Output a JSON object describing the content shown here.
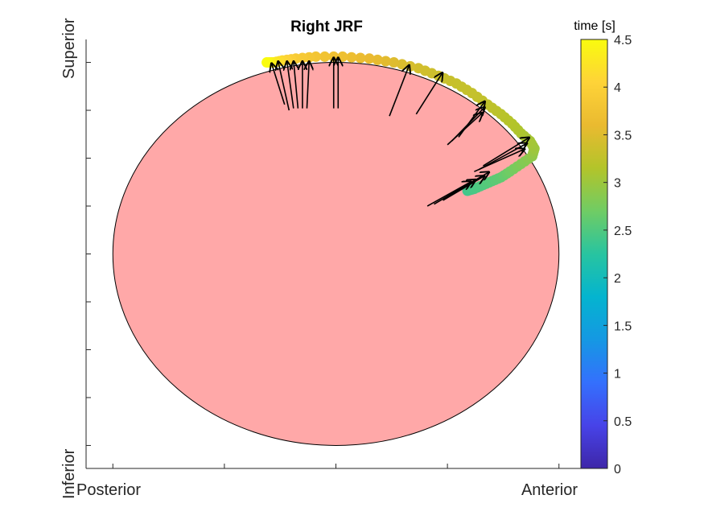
{
  "chart_data": {
    "type": "scatter",
    "title": "Right JRF",
    "xlabel_left": "Posterior",
    "xlabel_right": "Anterior",
    "ylabel_top": "Superior",
    "ylabel_bottom": "Inferior",
    "xlim": [
      -1.12,
      1.12
    ],
    "ylim": [
      -1.12,
      1.12
    ],
    "xticks": [
      -1,
      -0.5,
      0,
      0.5,
      1
    ],
    "yticks": [
      -1,
      -0.75,
      -0.5,
      -0.25,
      0,
      0.25,
      0.5,
      0.75,
      1
    ],
    "grid": false,
    "circle": {
      "center": [
        0,
        0
      ],
      "radius": 1,
      "fill": "#ffa8a8"
    },
    "colorbar": {
      "label": "time [s]",
      "range": [
        0,
        4.5
      ],
      "ticks": [
        0,
        0.5,
        1,
        1.5,
        2,
        2.5,
        3,
        3.5,
        4,
        4.5
      ],
      "tick_labels": [
        "0",
        "0.5",
        "1",
        "1.5",
        "2",
        "2.5",
        "3",
        "3.5",
        "4",
        "4.5"
      ],
      "colormap": "parula"
    },
    "points": [
      {
        "x": 0.59,
        "y": 0.33,
        "t": 2.4
      },
      {
        "x": 0.62,
        "y": 0.34,
        "t": 2.45
      },
      {
        "x": 0.66,
        "y": 0.36,
        "t": 2.5
      },
      {
        "x": 0.7,
        "y": 0.38,
        "t": 2.55
      },
      {
        "x": 0.74,
        "y": 0.4,
        "t": 2.6
      },
      {
        "x": 0.78,
        "y": 0.43,
        "t": 2.7
      },
      {
        "x": 0.83,
        "y": 0.47,
        "t": 2.8
      },
      {
        "x": 0.88,
        "y": 0.51,
        "t": 2.9
      },
      {
        "x": 0.89,
        "y": 0.55,
        "t": 3.0
      },
      {
        "x": 0.87,
        "y": 0.59,
        "t": 3.05
      },
      {
        "x": 0.83,
        "y": 0.63,
        "t": 3.1
      },
      {
        "x": 0.79,
        "y": 0.68,
        "t": 3.15
      },
      {
        "x": 0.74,
        "y": 0.73,
        "t": 3.2
      },
      {
        "x": 0.68,
        "y": 0.78,
        "t": 3.25
      },
      {
        "x": 0.61,
        "y": 0.84,
        "t": 3.3
      },
      {
        "x": 0.54,
        "y": 0.89,
        "t": 3.3
      },
      {
        "x": 0.46,
        "y": 0.93,
        "t": 3.35
      },
      {
        "x": 0.37,
        "y": 0.97,
        "t": 3.4
      },
      {
        "x": 0.26,
        "y": 1.0,
        "t": 3.5
      },
      {
        "x": 0.15,
        "y": 1.02,
        "t": 3.6
      },
      {
        "x": 0.03,
        "y": 1.03,
        "t": 3.7
      },
      {
        "x": -0.09,
        "y": 1.03,
        "t": 3.8
      },
      {
        "x": -0.18,
        "y": 1.02,
        "t": 3.9
      },
      {
        "x": -0.24,
        "y": 1.01,
        "t": 4.1
      },
      {
        "x": -0.28,
        "y": 1.0,
        "t": 4.3
      },
      {
        "x": -0.31,
        "y": 1.0,
        "t": 4.5
      }
    ],
    "arrows": [
      {
        "x0": 0.41,
        "y0": 0.25,
        "x1": 0.61,
        "y1": 0.38
      },
      {
        "x0": 0.44,
        "y0": 0.26,
        "x1": 0.63,
        "y1": 0.39
      },
      {
        "x0": 0.48,
        "y0": 0.28,
        "x1": 0.67,
        "y1": 0.41
      },
      {
        "x0": 0.5,
        "y0": 0.3,
        "x1": 0.69,
        "y1": 0.43
      },
      {
        "x0": 0.62,
        "y0": 0.43,
        "x1": 0.85,
        "y1": 0.55
      },
      {
        "x0": 0.64,
        "y0": 0.44,
        "x1": 0.86,
        "y1": 0.58
      },
      {
        "x0": 0.66,
        "y0": 0.46,
        "x1": 0.87,
        "y1": 0.61
      },
      {
        "x0": 0.5,
        "y0": 0.57,
        "x1": 0.66,
        "y1": 0.74
      },
      {
        "x0": 0.52,
        "y0": 0.59,
        "x1": 0.67,
        "y1": 0.77
      },
      {
        "x0": 0.55,
        "y0": 0.61,
        "x1": 0.67,
        "y1": 0.8
      },
      {
        "x0": 0.36,
        "y0": 0.73,
        "x1": 0.48,
        "y1": 0.95
      },
      {
        "x0": 0.24,
        "y0": 0.72,
        "x1": 0.33,
        "y1": 0.99
      },
      {
        "x0": -0.01,
        "y0": 0.76,
        "x1": -0.01,
        "y1": 1.03
      },
      {
        "x0": 0.01,
        "y0": 0.76,
        "x1": 0.01,
        "y1": 1.03
      },
      {
        "x0": -0.21,
        "y0": 0.75,
        "x1": -0.26,
        "y1": 1.01
      },
      {
        "x0": -0.19,
        "y0": 0.76,
        "x1": -0.22,
        "y1": 1.01
      },
      {
        "x0": -0.17,
        "y0": 0.76,
        "x1": -0.19,
        "y1": 1.01
      },
      {
        "x0": -0.15,
        "y0": 0.76,
        "x1": -0.15,
        "y1": 1.01
      },
      {
        "x0": -0.13,
        "y0": 0.76,
        "x1": -0.12,
        "y1": 1.01
      },
      {
        "x0": -0.23,
        "y0": 0.78,
        "x1": -0.29,
        "y1": 1.0
      }
    ]
  }
}
